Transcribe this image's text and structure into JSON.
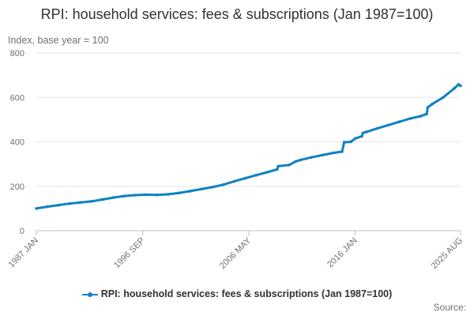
{
  "chart_data": {
    "type": "line",
    "title": "RPI: household services: fees & subscriptions (Jan 1987=100)",
    "ylabel": "Index, base year = 100",
    "xlabel": "",
    "ylim": [
      0,
      800
    ],
    "yticks": [
      0,
      200,
      400,
      600,
      800
    ],
    "x_start_year": 1987,
    "x_end_year": 2025.58,
    "xticks": [
      {
        "label": "1987 JAN",
        "year": 1987.0
      },
      {
        "label": "1996 SEP",
        "year": 1996.67
      },
      {
        "label": "2006 MAY",
        "year": 2006.33
      },
      {
        "label": "2016 JAN",
        "year": 2016.0
      },
      {
        "label": "2025 AUG",
        "year": 2025.58
      }
    ],
    "series": [
      {
        "name": "RPI: household services: fees & subscriptions (Jan 1987=100)",
        "color": "#0f82c1",
        "points": [
          [
            1987.0,
            100
          ],
          [
            1988.0,
            108
          ],
          [
            1989.0,
            115
          ],
          [
            1990.0,
            122
          ],
          [
            1991.0,
            127
          ],
          [
            1992.0,
            132
          ],
          [
            1993.0,
            140
          ],
          [
            1994.0,
            149
          ],
          [
            1995.0,
            156
          ],
          [
            1996.0,
            160
          ],
          [
            1997.0,
            162
          ],
          [
            1998.0,
            161
          ],
          [
            1999.0,
            164
          ],
          [
            2000.0,
            170
          ],
          [
            2001.0,
            178
          ],
          [
            2002.0,
            187
          ],
          [
            2003.0,
            196
          ],
          [
            2004.0,
            207
          ],
          [
            2005.0,
            222
          ],
          [
            2006.0,
            236
          ],
          [
            2007.0,
            250
          ],
          [
            2008.0,
            263
          ],
          [
            2008.9,
            276
          ],
          [
            2009.0,
            290
          ],
          [
            2010.0,
            296
          ],
          [
            2010.6,
            312
          ],
          [
            2011.0,
            318
          ],
          [
            2012.0,
            330
          ],
          [
            2013.0,
            340
          ],
          [
            2014.0,
            350
          ],
          [
            2014.8,
            356
          ],
          [
            2015.0,
            398
          ],
          [
            2015.6,
            400
          ],
          [
            2016.0,
            415
          ],
          [
            2016.6,
            425
          ],
          [
            2016.7,
            440
          ],
          [
            2017.0,
            444
          ],
          [
            2018.0,
            460
          ],
          [
            2019.0,
            475
          ],
          [
            2020.0,
            490
          ],
          [
            2021.0,
            505
          ],
          [
            2021.9,
            515
          ],
          [
            2022.5,
            525
          ],
          [
            2022.6,
            555
          ],
          [
            2023.0,
            570
          ],
          [
            2024.0,
            600
          ],
          [
            2025.0,
            640
          ],
          [
            2025.4,
            658
          ],
          [
            2025.58,
            652
          ]
        ]
      }
    ],
    "source_label": "Source:"
  }
}
